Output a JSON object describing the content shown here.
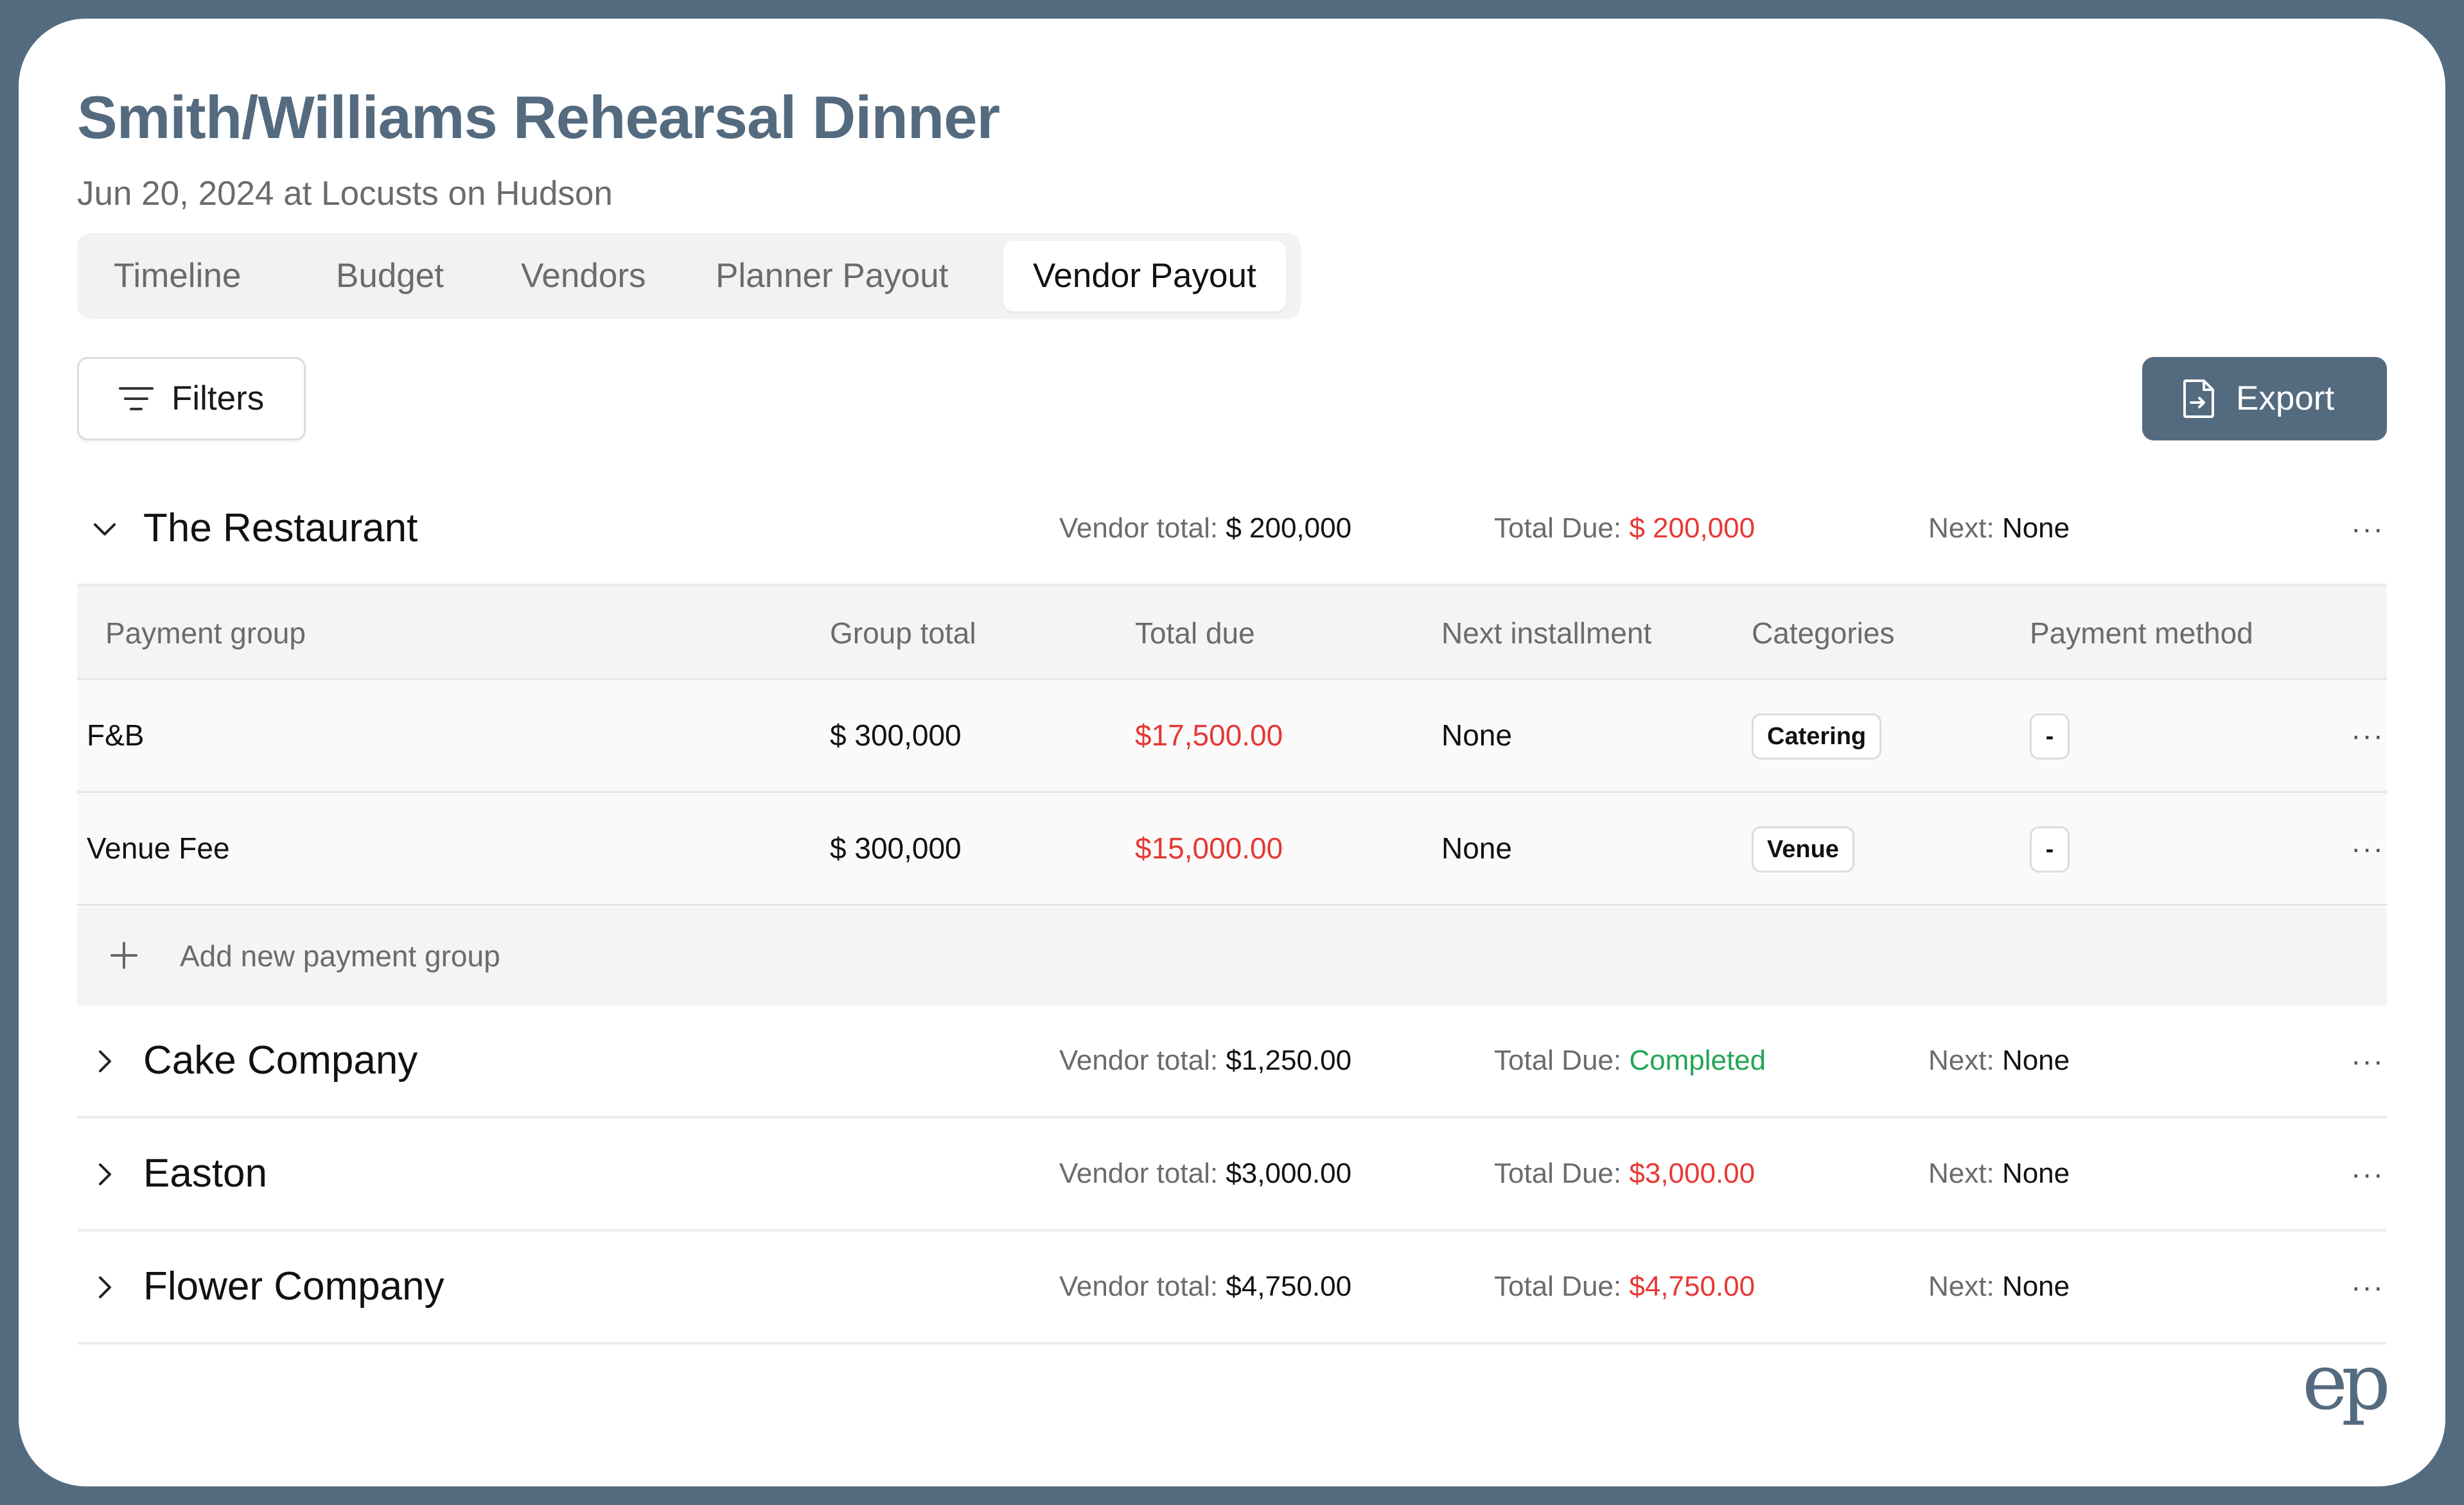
{
  "header": {
    "title": "Smith/Williams Rehearsal Dinner",
    "subtitle": "Jun 20, 2024 at Locusts on Hudson"
  },
  "tabs": [
    {
      "label": "Timeline",
      "active": false
    },
    {
      "label": "Budget",
      "active": false
    },
    {
      "label": "Vendors",
      "active": false
    },
    {
      "label": "Planner Payout",
      "active": false
    },
    {
      "label": "Vendor Payout",
      "active": true
    }
  ],
  "toolbar": {
    "filters_label": "Filters",
    "export_label": "Export"
  },
  "labels": {
    "vendor_total": "Vendor total:",
    "total_due": "Total Due:",
    "next": "Next:"
  },
  "vendors": [
    {
      "name": "The Restaurant",
      "expanded": true,
      "vendor_total": "$ 200,000",
      "total_due": "$ 200,000",
      "total_due_status": "due",
      "next": "None"
    },
    {
      "name": "Cake Company",
      "expanded": false,
      "vendor_total": "$1,250.00",
      "total_due": "Completed",
      "total_due_status": "completed",
      "next": "None"
    },
    {
      "name": "Easton",
      "expanded": false,
      "vendor_total": "$3,000.00",
      "total_due": "$3,000.00",
      "total_due_status": "due",
      "next": "None"
    },
    {
      "name": "Flower Company",
      "expanded": false,
      "vendor_total": "$4,750.00",
      "total_due": "$4,750.00",
      "total_due_status": "due",
      "next": "None"
    }
  ],
  "payment_table": {
    "columns": [
      "Payment group",
      "Group total",
      "Total due",
      "Next installment",
      "Categories",
      "Payment method"
    ],
    "rows": [
      {
        "payment_group": "F&B",
        "group_total": "$ 300,000",
        "total_due": "$17,500.00",
        "next_installment": "None",
        "category": "Catering",
        "payment_method": "-"
      },
      {
        "payment_group": "Venue Fee",
        "group_total": "$ 300,000",
        "total_due": "$15,000.00",
        "next_installment": "None",
        "category": "Venue",
        "payment_method": "-"
      }
    ],
    "add_label": "Add new payment group"
  },
  "more_glyph": "···",
  "logo_text": "ep",
  "colors": {
    "brand": "#546a7f",
    "due_red": "#e53935",
    "completed_green": "#23a455"
  },
  "icons": [
    "filter-icon",
    "export-file-icon",
    "chevron-down-icon",
    "chevron-right-icon",
    "more-horizontal-icon",
    "plus-icon"
  ]
}
